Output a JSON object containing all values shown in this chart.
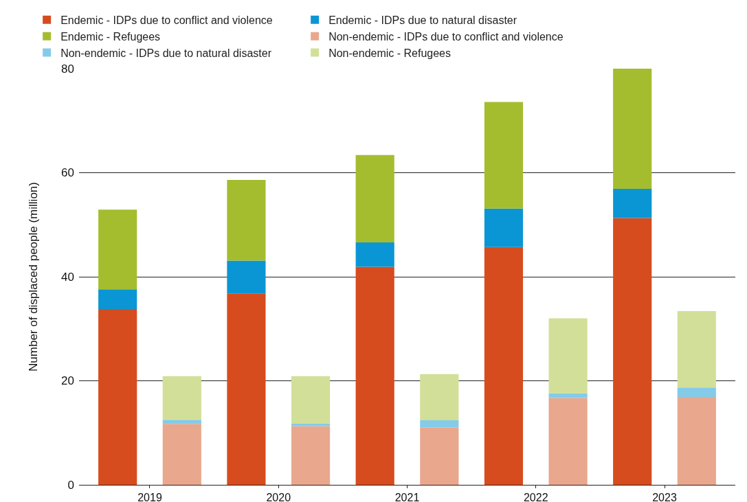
{
  "chart_data": {
    "type": "bar",
    "stacked": true,
    "ylabel": "Number of displaced people (million)",
    "categories": [
      "2019",
      null,
      "2020",
      null,
      "2021",
      null,
      "2022",
      null,
      "2023",
      null
    ],
    "ylim": [
      0,
      80
    ],
    "yticks": [
      0,
      20,
      40,
      60,
      80
    ],
    "grid": "y",
    "legend": "top",
    "series": [
      {
        "name": "Endemic - IDPs due to conflict and violence",
        "color": "#d64c1e",
        "values": [
          33.8,
          null,
          36.8,
          null,
          41.9,
          null,
          45.7,
          null,
          51.3,
          null
        ]
      },
      {
        "name": "Endemic - IDPs due to natural disaster",
        "color": "#0a96d4",
        "values": [
          3.8,
          null,
          6.3,
          null,
          4.7,
          null,
          7.4,
          null,
          5.6,
          null
        ]
      },
      {
        "name": "Endemic - Refugees",
        "color": "#a4bd2f",
        "values": [
          15.3,
          null,
          15.5,
          null,
          16.8,
          null,
          20.5,
          null,
          23.1,
          null
        ]
      },
      {
        "name": "Non-endemic - IDPs due to conflict and violence",
        "color": "#e9a78d",
        "values": [
          null,
          11.7,
          null,
          11.3,
          null,
          11.0,
          null,
          16.7,
          null,
          16.9
        ]
      },
      {
        "name": "Non-endemic - IDPs due to natural disaster",
        "color": "#84cbe9",
        "values": [
          null,
          0.8,
          null,
          0.5,
          null,
          1.4,
          null,
          0.9,
          null,
          1.8
        ]
      },
      {
        "name": "Non-endemic - Refugees",
        "color": "#d2df98",
        "values": [
          null,
          8.4,
          null,
          9.1,
          null,
          8.9,
          null,
          14.4,
          null,
          14.7
        ]
      }
    ]
  }
}
